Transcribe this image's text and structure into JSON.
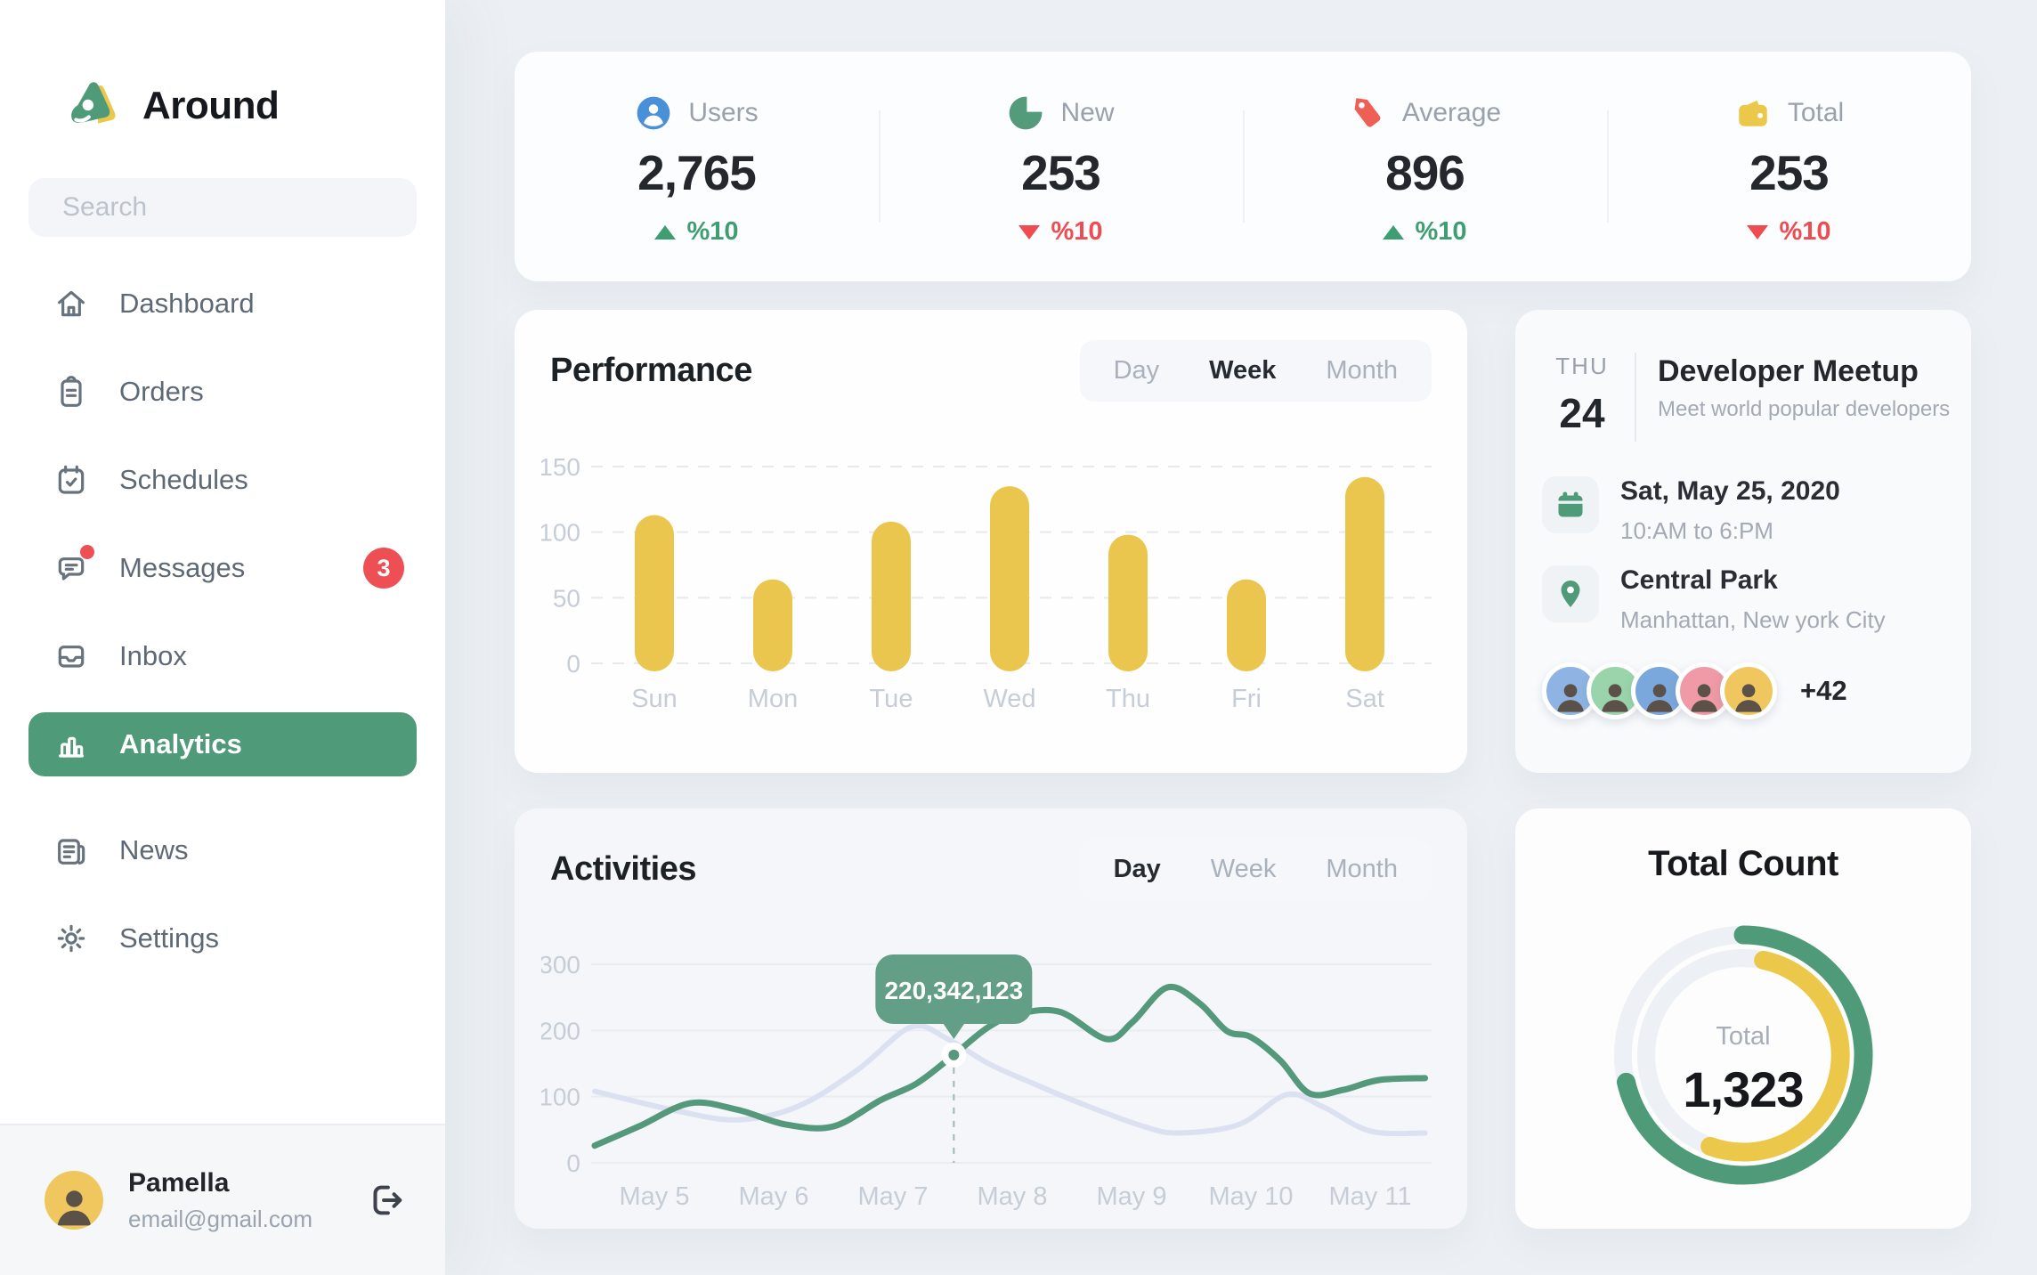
{
  "app": {
    "brand": "Around"
  },
  "colors": {
    "accent_green": "#4f9b79",
    "bar_yellow": "#eac64e",
    "badge_red": "#ee4f55",
    "delta_up": "#3f9e71",
    "delta_down": "#ef4b50",
    "line_green": "#55997c",
    "line_light": "#dbe1f1",
    "tooltip_green": "#639e86",
    "donut_track": "#edf0f4"
  },
  "sidebar": {
    "search_placeholder": "Search",
    "items": [
      {
        "label": "Dashboard",
        "icon": "home-icon",
        "active": false
      },
      {
        "label": "Orders",
        "icon": "orders-icon",
        "active": false
      },
      {
        "label": "Schedules",
        "icon": "schedules-icon",
        "active": false
      },
      {
        "label": "Messages",
        "icon": "messages-icon",
        "active": false,
        "badge": "3",
        "dot": true
      },
      {
        "label": "Inbox",
        "icon": "inbox-icon",
        "active": false
      },
      {
        "label": "Analytics",
        "icon": "analytics-icon",
        "active": true
      },
      {
        "label": "News",
        "icon": "news-icon",
        "active": false,
        "section_break": true
      },
      {
        "label": "Settings",
        "icon": "settings-icon",
        "active": false
      }
    ],
    "profile": {
      "name": "Pamella",
      "email": "email@gmail.com"
    }
  },
  "stats": [
    {
      "label": "Users",
      "value": "2,765",
      "delta": "%10",
      "direction": "up",
      "icon": "users-icon"
    },
    {
      "label": "New",
      "value": "253",
      "delta": "%10",
      "direction": "down",
      "icon": "pie-icon"
    },
    {
      "label": "Average",
      "value": "896",
      "delta": "%10",
      "direction": "up",
      "icon": "tag-icon"
    },
    {
      "label": "Total",
      "value": "253",
      "delta": "%10",
      "direction": "down",
      "icon": "wallet-icon"
    }
  ],
  "performance": {
    "title": "Performance",
    "tabs": [
      "Day",
      "Week",
      "Month"
    ],
    "active_tab": "Week"
  },
  "activities": {
    "title": "Activities",
    "tabs": [
      "Day",
      "Week",
      "Month"
    ],
    "active_tab": "Day"
  },
  "meetup": {
    "day_label": "THU",
    "day_number": "24",
    "title": "Developer Meetup",
    "subtitle": "Meet world popular developers",
    "date": "Sat, May 25, 2020",
    "time": "10:AM to 6:PM",
    "place": "Central Park",
    "address": "Manhattan, New york City",
    "extra_attendees": "+42",
    "avatar_colors": [
      "#8db4e2",
      "#99d4ab",
      "#7aa7dc",
      "#ef9aa6",
      "#f0c75e"
    ]
  },
  "total_count": {
    "title": "Total Count",
    "center_label": "Total",
    "center_value": "1,323"
  },
  "chart_data": [
    {
      "id": "performance",
      "type": "bar",
      "title": "Performance",
      "categories": [
        "Sun",
        "Mon",
        "Tue",
        "Wed",
        "Thu",
        "Fri",
        "Sat"
      ],
      "values": [
        113,
        64,
        108,
        135,
        98,
        64,
        142
      ],
      "yticks": [
        150,
        100,
        50,
        0
      ],
      "ylim": [
        0,
        150
      ],
      "grid": "dashed",
      "bar_color": "#eac64e"
    },
    {
      "id": "activities",
      "type": "line",
      "title": "Activities",
      "x_labels": [
        "May 5",
        "May 6",
        "May 7",
        "May 8",
        "May 9",
        "May 10",
        "May 11"
      ],
      "yticks": [
        300,
        200,
        100,
        0
      ],
      "ylim": [
        0,
        300
      ],
      "grid": "solid",
      "series": [
        {
          "name": "previous",
          "color": "#dbe1f1",
          "points": [
            [
              -0.5,
              108
            ],
            [
              0.2,
              78
            ],
            [
              0.7,
              65
            ],
            [
              1.2,
              85
            ],
            [
              1.7,
              140
            ],
            [
              2.15,
              205
            ],
            [
              2.45,
              188
            ],
            [
              2.8,
              150
            ],
            [
              3.2,
              118
            ],
            [
              3.6,
              88
            ],
            [
              4.1,
              55
            ],
            [
              4.4,
              45
            ],
            [
              4.9,
              58
            ],
            [
              5.3,
              103
            ],
            [
              5.6,
              85
            ],
            [
              6.0,
              48
            ],
            [
              6.46,
              45
            ]
          ]
        },
        {
          "name": "current",
          "color": "#55997c",
          "points": [
            [
              -0.5,
              26
            ],
            [
              -0.13,
              55
            ],
            [
              0.3,
              90
            ],
            [
              0.7,
              80
            ],
            [
              1.1,
              58
            ],
            [
              1.5,
              55
            ],
            [
              1.9,
              95
            ],
            [
              2.2,
              120
            ],
            [
              2.51,
              163
            ],
            [
              2.8,
              205
            ],
            [
              3.05,
              225
            ],
            [
              3.4,
              228
            ],
            [
              3.79,
              187
            ],
            [
              4.01,
              213
            ],
            [
              4.3,
              265
            ],
            [
              4.57,
              241
            ],
            [
              4.8,
              199
            ],
            [
              5.0,
              190
            ],
            [
              5.25,
              154
            ],
            [
              5.49,
              105
            ],
            [
              5.77,
              110
            ],
            [
              6.07,
              125
            ],
            [
              6.46,
              128
            ]
          ]
        }
      ],
      "tooltip": {
        "label": "220,342,123",
        "x": 2.51,
        "y": 163,
        "series": "current"
      }
    },
    {
      "id": "total_count",
      "type": "donut",
      "title": "Total Count",
      "center_label": "Total",
      "center_value": "1,323",
      "track_color": "#edf0f4",
      "rings": [
        {
          "name": "outer",
          "color": "#4f9b79",
          "start_deg": 0,
          "end_deg": 257,
          "radius": 135
        },
        {
          "name": "inner",
          "color": "#ecc84a",
          "start_deg": 12,
          "end_deg": 200,
          "radius": 109
        }
      ]
    }
  ]
}
